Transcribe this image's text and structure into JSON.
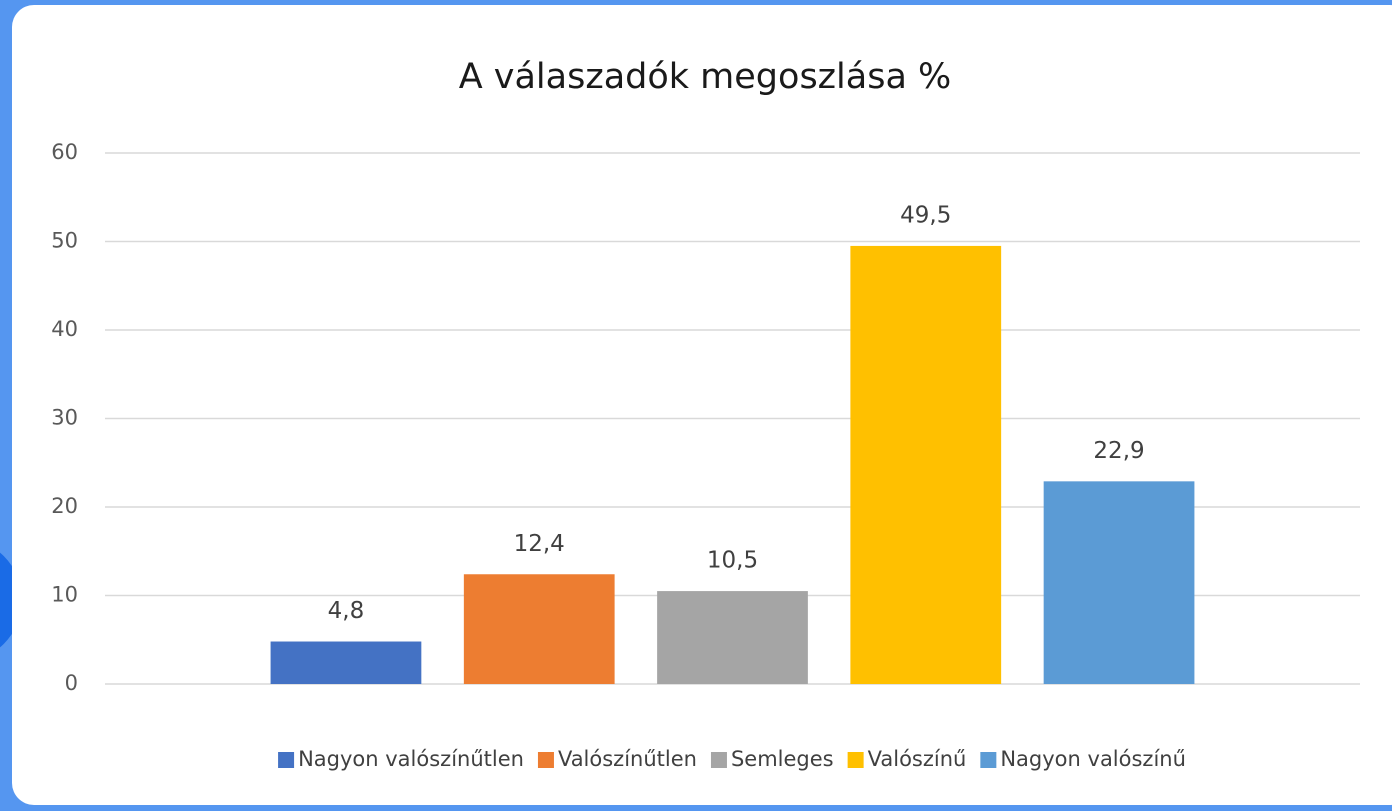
{
  "chart_data": {
    "type": "bar",
    "title": "A válaszadók megoszlása %",
    "categories": [
      null
    ],
    "series": [
      {
        "name": "Nagyon valószínűtlen",
        "color": "#4472c4",
        "values": [
          4.8
        ],
        "value_labels": [
          "4,8"
        ]
      },
      {
        "name": "Valószínűtlen",
        "color": "#ed7d31",
        "values": [
          12.4
        ],
        "value_labels": [
          "12,4"
        ]
      },
      {
        "name": "Semleges",
        "color": "#a5a5a5",
        "values": [
          10.5
        ],
        "value_labels": [
          "10,5"
        ]
      },
      {
        "name": "Valószínű",
        "color": "#ffc000",
        "values": [
          49.5
        ],
        "value_labels": [
          "49,5"
        ]
      },
      {
        "name": "Nagyon valószínű",
        "color": "#5b9bd5",
        "values": [
          22.9
        ],
        "value_labels": [
          "22,9"
        ]
      }
    ],
    "ylim": [
      0,
      60
    ],
    "yticks": [
      0,
      10,
      20,
      30,
      40,
      50,
      60
    ],
    "grid": true,
    "legend": "bottom"
  }
}
